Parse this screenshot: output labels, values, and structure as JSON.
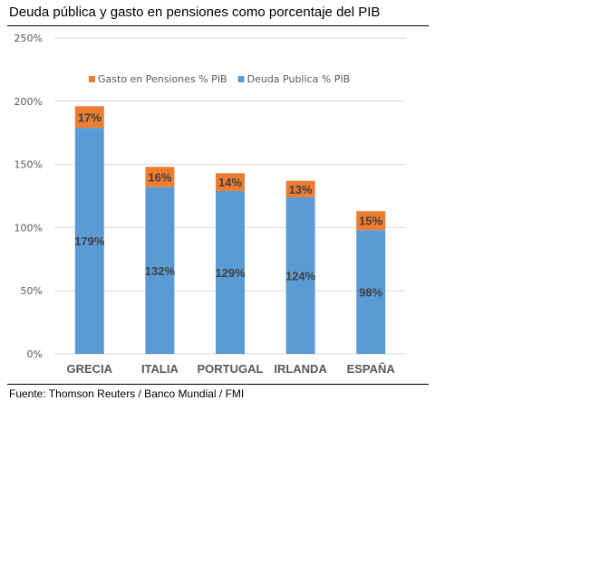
{
  "chart_data": {
    "type": "bar",
    "stacked": true,
    "title": "Deuda pública y gasto en pensiones como porcentaje del PIB",
    "source": "Fuente: Thomson Reuters / Banco Mundial / FMI",
    "categories": [
      "GRECIA",
      "ITALIA",
      "PORTUGAL",
      "IRLANDA",
      "ESPAÑA"
    ],
    "series": [
      {
        "name": "Deuda Publica % PIB",
        "values": [
          179,
          132,
          129,
          124,
          98
        ],
        "labels": [
          "179%",
          "132%",
          "129%",
          "124%",
          "98%"
        ],
        "color": "#5b9bd5"
      },
      {
        "name": "Gasto en Pensiones % PIB",
        "values": [
          17,
          16,
          14,
          13,
          15
        ],
        "labels": [
          "17%",
          "16%",
          "14%",
          "13%",
          "15%"
        ],
        "color": "#ed7d31"
      }
    ],
    "legend_order": [
      "Gasto en Pensiones % PIB",
      "Deuda Publica % PIB"
    ],
    "legend_placement": "top-center",
    "ylim": [
      0,
      250
    ],
    "yticks": [
      "0%",
      "50%",
      "100%",
      "150%",
      "200%",
      "250%"
    ],
    "grid": true,
    "xlabel": "",
    "ylabel": ""
  }
}
